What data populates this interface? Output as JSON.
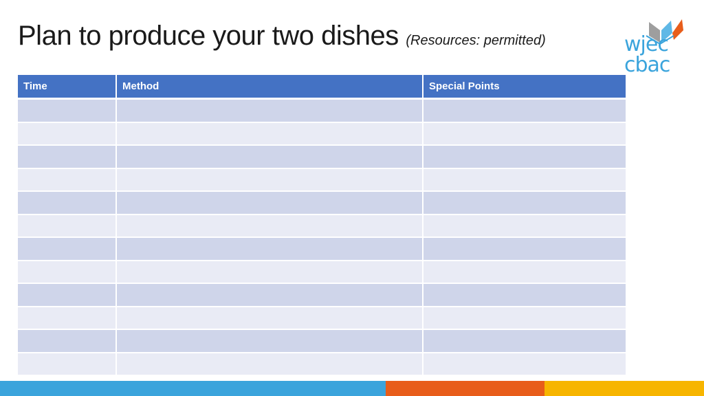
{
  "title": {
    "main": "Plan to produce your two dishes",
    "sub": "(Resources: permitted)"
  },
  "logo": {
    "line1": "wjec",
    "line2": "cbac",
    "colors": {
      "text": "#3ba4dc",
      "grey": "#9e9e9e",
      "orange": "#e85d1a",
      "light_blue": "#5fb8e6"
    }
  },
  "table": {
    "columns": [
      "Time",
      "Method",
      "Special Points"
    ],
    "rows": [
      [
        "",
        "",
        ""
      ],
      [
        "",
        "",
        ""
      ],
      [
        "",
        "",
        ""
      ],
      [
        "",
        "",
        ""
      ],
      [
        "",
        "",
        ""
      ],
      [
        "",
        "",
        ""
      ],
      [
        "",
        "",
        ""
      ],
      [
        "",
        "",
        ""
      ],
      [
        "",
        "",
        ""
      ],
      [
        "",
        "",
        ""
      ],
      [
        "",
        "",
        ""
      ],
      [
        "",
        "",
        ""
      ]
    ],
    "colors": {
      "header": "#4472c4",
      "odd_row": "#cfd5ea",
      "even_row": "#e9ebf5"
    }
  },
  "footer": {
    "colors": [
      "#3ba4dc",
      "#e85d1a",
      "#f7b500"
    ]
  }
}
